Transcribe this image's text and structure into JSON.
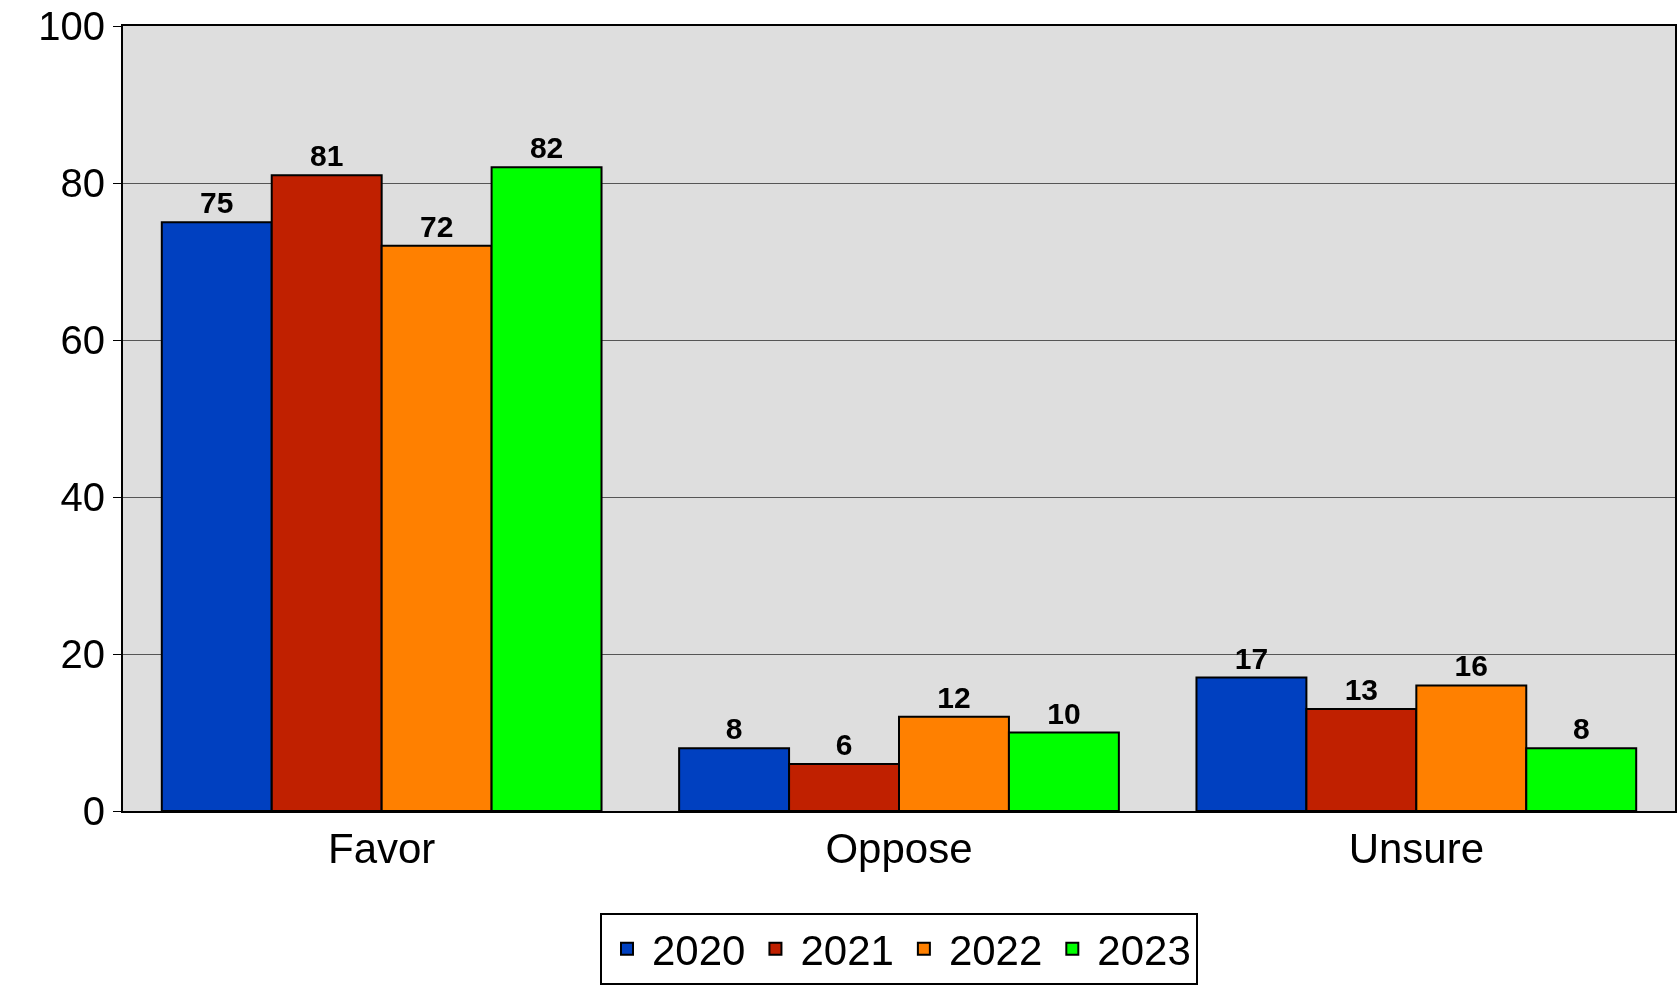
{
  "chart_data": {
    "type": "bar",
    "categories": [
      "Favor",
      "Oppose",
      "Unsure"
    ],
    "series": [
      {
        "name": "2020",
        "color": "#0040c0",
        "values": [
          75,
          8,
          17
        ]
      },
      {
        "name": "2021",
        "color": "#c02000",
        "values": [
          81,
          6,
          13
        ]
      },
      {
        "name": "2022",
        "color": "#ff8000",
        "values": [
          72,
          12,
          16
        ]
      },
      {
        "name": "2023",
        "color": "#00ff00",
        "values": [
          82,
          10,
          8
        ]
      }
    ],
    "ylim": [
      0,
      100
    ],
    "yticks": [
      0,
      20,
      40,
      60,
      80,
      100
    ],
    "grid": "y",
    "legend": "bottom",
    "data_labels": true
  }
}
